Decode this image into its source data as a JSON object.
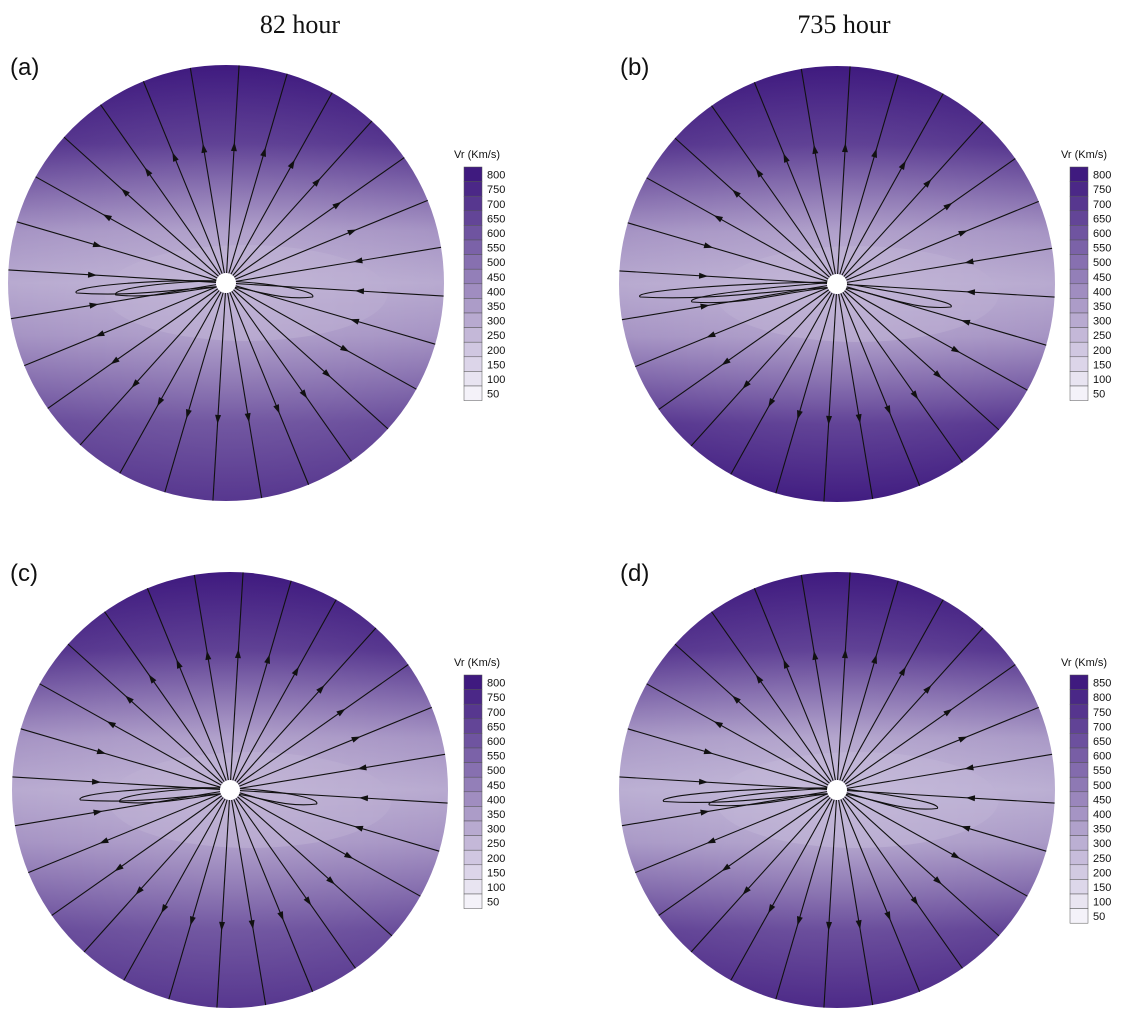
{
  "column_titles": [
    "82   hour",
    "735   hour"
  ],
  "chart_data": [
    {
      "type": "heatmap",
      "panel": "(a)",
      "colorbar_title": "Vr (Km/s)",
      "colorbar_levels": [
        "800",
        "750",
        "700",
        "650",
        "600",
        "550",
        "500",
        "450",
        "400",
        "350",
        "300",
        "250",
        "200",
        "150",
        "100",
        "50"
      ],
      "field": {
        "pole_top": 800,
        "pole_bottom": 700,
        "equator": 300
      },
      "streamlines": "radial outflow with equatorial current sheet"
    },
    {
      "type": "heatmap",
      "panel": "(b)",
      "colorbar_title": "Vr (Km/s)",
      "colorbar_levels": [
        "800",
        "750",
        "700",
        "650",
        "600",
        "550",
        "500",
        "450",
        "400",
        "350",
        "300",
        "250",
        "200",
        "150",
        "100",
        "50"
      ],
      "field": {
        "pole_top": 800,
        "pole_bottom": 790,
        "equator": 300
      },
      "streamlines": "radial outflow with twisted equatorial loops"
    },
    {
      "type": "heatmap",
      "panel": "(c)",
      "colorbar_title": "Vr (Km/s)",
      "colorbar_levels": [
        "800",
        "750",
        "700",
        "650",
        "600",
        "550",
        "500",
        "450",
        "400",
        "350",
        "300",
        "250",
        "200",
        "150",
        "100",
        "50"
      ],
      "field": {
        "pole_top": 800,
        "pole_bottom": 700,
        "equator": 300
      },
      "streamlines": "radial outflow with equatorial current sheet"
    },
    {
      "type": "heatmap",
      "panel": "(d)",
      "colorbar_title": "Vr (Km/s)",
      "colorbar_levels": [
        "850",
        "800",
        "750",
        "700",
        "650",
        "600",
        "550",
        "500",
        "450",
        "400",
        "350",
        "300",
        "250",
        "200",
        "150",
        "100",
        "50"
      ],
      "field": {
        "pole_top": 850,
        "pole_bottom": 790,
        "equator": 300
      },
      "streamlines": "radial outflow with equatorial loops"
    }
  ],
  "palette": {
    "low": "#f4f2f9",
    "high": "#3f1a7f",
    "contour_line": "#111111"
  }
}
